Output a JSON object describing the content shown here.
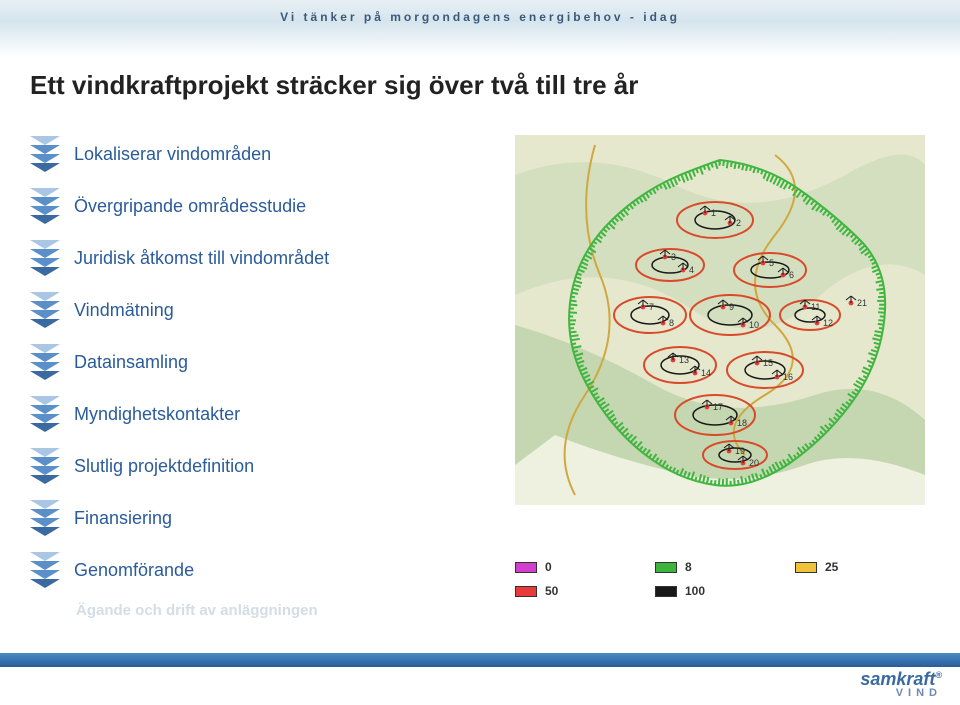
{
  "tagline": "Vi tänker på morgondagens energibehov - idag",
  "title": "Ett vindkraftprojekt sträcker sig över två till tre år",
  "steps": [
    "Lokaliserar vindområden",
    "Övergripande områdesstudie",
    "Juridisk åtkomst till vindområdet",
    "Vindmätning",
    "Datainsamling",
    "Myndighetskontakter",
    "Slutlig projektdefinition",
    "Finansiering",
    "Genomförande"
  ],
  "ghost_step": "Ägande och drift av anläggningen",
  "step_label_color": "#2a5b9b",
  "step_label_fontsize": 18,
  "chevron_color": "#5a8fca",
  "chevron_highlight": "#a9c7e4",
  "map": {
    "background_terrain_colors": [
      "#e5e8cc",
      "#d4dfc0",
      "#c4d7b0",
      "#eef0e0",
      "#f2f2e6"
    ],
    "boundary_color": "#40b540",
    "contour_colors": {
      "outer": "#d94a2b",
      "inner": "#181818"
    },
    "turbine_marker_color": "#181818",
    "turbine_marker_dot": "#e83a3a",
    "road_color": "#d0a840",
    "label_color": "#333333",
    "turbine_labels": [
      "1",
      "2",
      "3",
      "4",
      "5",
      "6",
      "7",
      "8",
      "9",
      "10",
      "11",
      "12",
      "13",
      "14",
      "15",
      "16",
      "17",
      "18",
      "19",
      "20",
      "21"
    ]
  },
  "legend": [
    {
      "label": "0",
      "color": "#d13fcf"
    },
    {
      "label": "8",
      "color": "#3bb53b"
    },
    {
      "label": "25",
      "color": "#f0c23a"
    },
    {
      "label": "50",
      "color": "#e83a3a"
    },
    {
      "label": "100",
      "color": "#181818"
    }
  ],
  "logo": {
    "top": "samkraft",
    "registered": "®",
    "bottom": "VIND"
  }
}
